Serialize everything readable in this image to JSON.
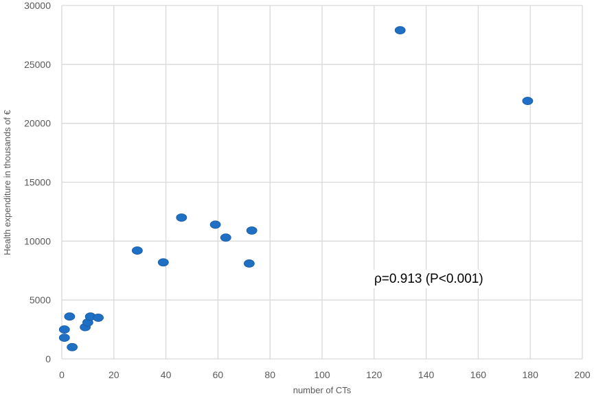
{
  "chart_data": {
    "type": "scatter",
    "title": "",
    "xlabel": "number of CTs",
    "ylabel": "Health expenditure in thousands of €",
    "xlim": [
      0,
      200
    ],
    "ylim": [
      0,
      30000
    ],
    "x_ticks": [
      "0",
      "20",
      "40",
      "60",
      "80",
      "100",
      "120",
      "140",
      "160",
      "180",
      "200"
    ],
    "y_ticks": [
      "0",
      "5000",
      "10000",
      "15000",
      "20000",
      "25000",
      "30000"
    ],
    "grid": true,
    "legend": "none",
    "annotation": "ρ=0.913 (P<0.001)",
    "marker_color": "#1f6fc5",
    "series": [
      {
        "points": [
          {
            "x": 1,
            "y": 1800
          },
          {
            "x": 1,
            "y": 2500
          },
          {
            "x": 3,
            "y": 3600
          },
          {
            "x": 4,
            "y": 1000
          },
          {
            "x": 9,
            "y": 2700
          },
          {
            "x": 10,
            "y": 3100
          },
          {
            "x": 11,
            "y": 3600
          },
          {
            "x": 14,
            "y": 3500
          },
          {
            "x": 29,
            "y": 9200
          },
          {
            "x": 39,
            "y": 8200
          },
          {
            "x": 46,
            "y": 12000
          },
          {
            "x": 59,
            "y": 11400
          },
          {
            "x": 63,
            "y": 10300
          },
          {
            "x": 72,
            "y": 8100
          },
          {
            "x": 73,
            "y": 10900
          },
          {
            "x": 130,
            "y": 27900
          },
          {
            "x": 179,
            "y": 21900
          }
        ]
      }
    ]
  }
}
